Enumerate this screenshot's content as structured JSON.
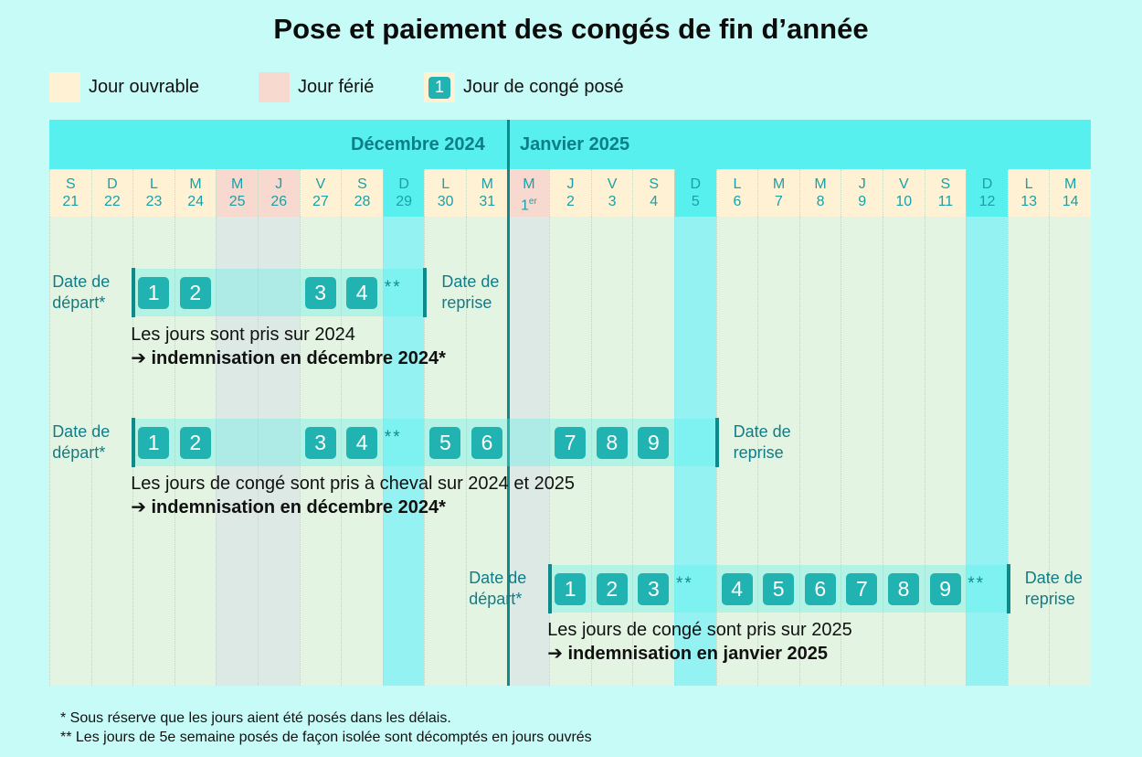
{
  "title": "Pose et paiement des congés de fin d’année",
  "legend": {
    "ouvrable": "Jour ouvrable",
    "ferie": "Jour férié",
    "conge_icon_number": "1",
    "conge": "Jour de congé posé"
  },
  "colors": {
    "ouvrable": "#fff2d4",
    "ferie": "#f8d9cf",
    "weekend": "#57f0ef",
    "header": "#57f0ef",
    "tile": "#20b3b1",
    "accent": "#0f8a8a"
  },
  "months": {
    "dec": "Décembre 2024",
    "jan": "Janvier 2025"
  },
  "days": [
    {
      "l": "S",
      "n": "21",
      "t": "o"
    },
    {
      "l": "D",
      "n": "22",
      "t": "o"
    },
    {
      "l": "L",
      "n": "23",
      "t": "o"
    },
    {
      "l": "M",
      "n": "24",
      "t": "o"
    },
    {
      "l": "M",
      "n": "25",
      "t": "f"
    },
    {
      "l": "J",
      "n": "26",
      "t": "f"
    },
    {
      "l": "V",
      "n": "27",
      "t": "o"
    },
    {
      "l": "S",
      "n": "28",
      "t": "o"
    },
    {
      "l": "D",
      "n": "29",
      "t": "w"
    },
    {
      "l": "L",
      "n": "30",
      "t": "o"
    },
    {
      "l": "M",
      "n": "31",
      "t": "o"
    },
    {
      "l": "M",
      "n": "1",
      "sup": "er",
      "t": "f"
    },
    {
      "l": "J",
      "n": "2",
      "t": "o"
    },
    {
      "l": "V",
      "n": "3",
      "t": "o"
    },
    {
      "l": "S",
      "n": "4",
      "t": "o"
    },
    {
      "l": "D",
      "n": "5",
      "t": "w"
    },
    {
      "l": "L",
      "n": "6",
      "t": "o"
    },
    {
      "l": "M",
      "n": "7",
      "t": "o"
    },
    {
      "l": "M",
      "n": "8",
      "t": "o"
    },
    {
      "l": "J",
      "n": "9",
      "t": "o"
    },
    {
      "l": "V",
      "n": "10",
      "t": "o"
    },
    {
      "l": "S",
      "n": "11",
      "t": "o"
    },
    {
      "l": "D",
      "n": "12",
      "t": "w"
    },
    {
      "l": "L",
      "n": "13",
      "t": "o"
    },
    {
      "l": "M",
      "n": "14",
      "t": "o"
    }
  ],
  "labels": {
    "depart": [
      "Date de",
      "départ*"
    ],
    "reprise": [
      "Date de",
      "reprise"
    ]
  },
  "scenarios": [
    {
      "start": 2,
      "end": 9,
      "tiles": [
        [
          "1",
          2
        ],
        [
          "2",
          3
        ],
        [
          "3",
          6
        ],
        [
          "4",
          7
        ]
      ],
      "stars": [
        [
          8,
          "**"
        ]
      ],
      "line1": "Les jours sont pris sur 2024",
      "line2": "➔ indemnisation en décembre 2024*"
    },
    {
      "start": 2,
      "end": 16,
      "tiles": [
        [
          "1",
          2
        ],
        [
          "2",
          3
        ],
        [
          "3",
          6
        ],
        [
          "4",
          7
        ],
        [
          "5",
          9
        ],
        [
          "6",
          10
        ],
        [
          "7",
          12
        ],
        [
          "8",
          13
        ],
        [
          "9",
          14
        ]
      ],
      "stars": [
        [
          8,
          "**"
        ]
      ],
      "line1": "Les jours de congé sont pris à cheval sur 2024 et 2025",
      "line2": "➔ indemnisation en décembre 2024*"
    },
    {
      "start": 12,
      "end": 23,
      "tiles": [
        [
          "1",
          12
        ],
        [
          "2",
          13
        ],
        [
          "3",
          14
        ],
        [
          "4",
          16
        ],
        [
          "5",
          17
        ],
        [
          "6",
          18
        ],
        [
          "7",
          19
        ],
        [
          "8",
          20
        ],
        [
          "9",
          21
        ]
      ],
      "stars": [
        [
          15,
          "**"
        ],
        [
          22,
          "**"
        ]
      ],
      "line1": "Les jours de congé sont pris sur 2025",
      "line2": "➔ indemnisation en janvier 2025"
    }
  ],
  "footnotes": [
    "* Sous réserve que les jours aient été posés dans les délais.",
    "** Les jours de 5e semaine posés de façon isolée sont décomptés en jours ouvrés"
  ]
}
